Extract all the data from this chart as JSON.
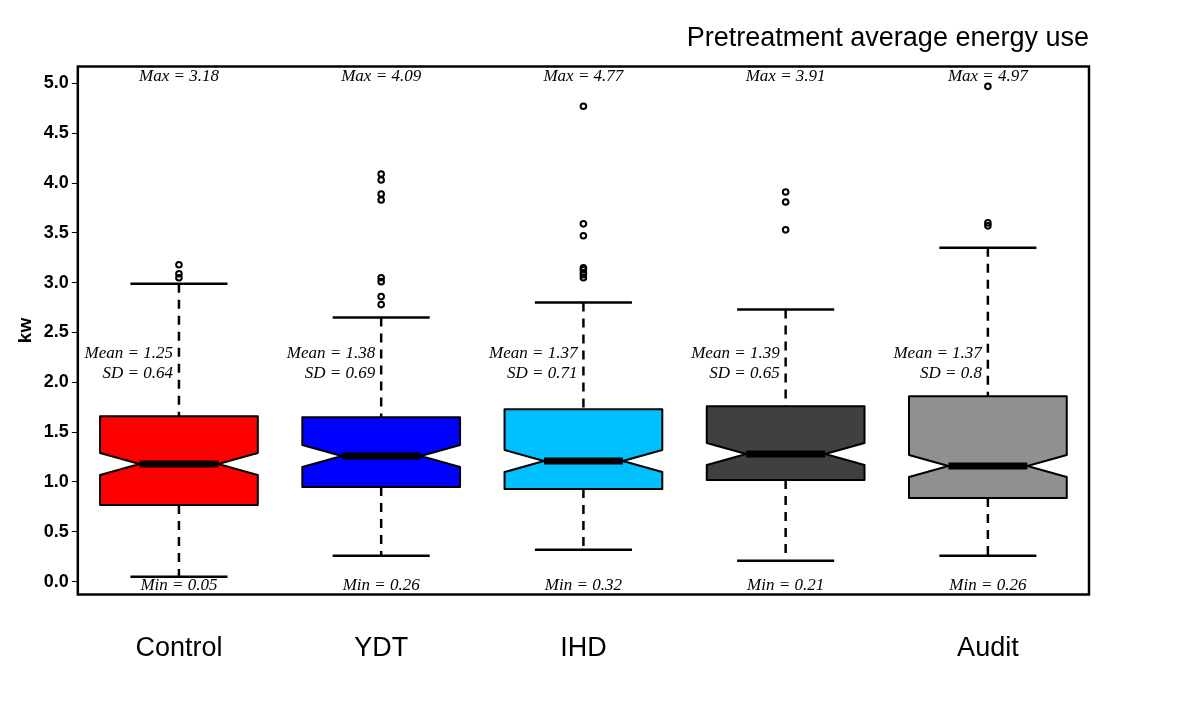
{
  "chart_data": {
    "type": "box",
    "title": "Pretreatment average energy use",
    "ylabel": "kw",
    "categories": [
      "Control",
      "YDT",
      "IHD",
      null,
      "Audit"
    ],
    "colors": [
      "#ff0000",
      "#0000ff",
      "#00bfff",
      "#404040",
      "#909090"
    ],
    "boxes": [
      {
        "low": 0.05,
        "q1": 0.77,
        "median": 1.18,
        "q3": 1.66,
        "high": 2.99,
        "outliers": [
          3.05,
          3.09,
          3.18
        ]
      },
      {
        "low": 0.26,
        "q1": 0.95,
        "median": 1.26,
        "q3": 1.65,
        "high": 2.65,
        "outliers": [
          2.78,
          2.86,
          3.01,
          3.05,
          3.83,
          3.89,
          4.03,
          4.09
        ]
      },
      {
        "low": 0.32,
        "q1": 0.93,
        "median": 1.21,
        "q3": 1.73,
        "high": 2.8,
        "outliers": [
          3.05,
          3.08,
          3.1,
          3.13,
          3.15,
          3.47,
          3.59,
          4.77
        ]
      },
      {
        "low": 0.21,
        "q1": 1.02,
        "median": 1.28,
        "q3": 1.76,
        "high": 2.73,
        "outliers": [
          3.53,
          3.81,
          3.91
        ]
      },
      {
        "low": 0.26,
        "q1": 0.84,
        "median": 1.16,
        "q3": 1.86,
        "high": 3.35,
        "outliers": [
          3.57,
          3.6,
          4.97
        ]
      }
    ],
    "ylim": [
      -0.13,
      5.17
    ],
    "yticks": [
      {
        "value": 0,
        "label": "0.0"
      },
      0.5,
      {
        "value": 1,
        "label": "1.0"
      },
      1.5,
      {
        "value": 2,
        "label": "2.0"
      },
      2.5,
      {
        "value": 3,
        "label": "3.0"
      },
      3.5,
      {
        "value": 4,
        "label": "4.0"
      },
      4.5,
      {
        "value": 5,
        "label": "5.0"
      }
    ],
    "grid": false,
    "legend": false,
    "annotations": [
      "Max = 3.18",
      "Mean = 1.25",
      "SD = 0.64",
      "Min = 0.05",
      "Max = 4.09",
      "Mean = 1.38",
      "SD = 0.69",
      "Min = 0.26",
      "Max = 4.77",
      "Mean = 1.37",
      "SD = 0.71",
      "Min = 0.32",
      "Max = 3.91",
      "Mean = 1.39",
      "SD = 0.65",
      "Min = 0.21",
      "Max = 4.97",
      "Mean = 1.37",
      "SD = 0.8",
      "Min = 0.26"
    ]
  }
}
